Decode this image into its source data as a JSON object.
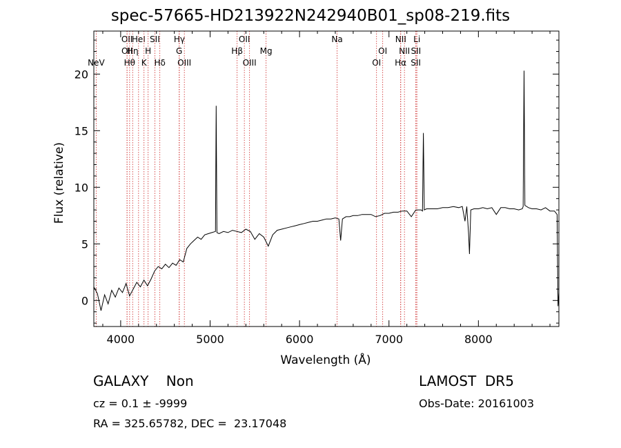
{
  "header": {
    "title": "spec-57665-HD213922N242940B01_sp08-219.fits"
  },
  "footer": {
    "object_class": "GALAXY    Non",
    "survey": "LAMOST  DR5",
    "cz_text": "cz = 0.1 ± -9999",
    "obs_date": "Obs-Date: 20161003",
    "radec": "RA = 325.65782, DEC =  23.17048"
  },
  "colors": {
    "spectrum": "#000000",
    "line_markers": "#cc2222",
    "axes": "#000000"
  },
  "chart_data": {
    "type": "line",
    "title": "spec-57665-HD213922N242940B01_sp08-219.fits",
    "xlabel": "Wavelength (Å)",
    "ylabel": "Flux (relative)",
    "xlim": [
      3700,
      8900
    ],
    "ylim": [
      -2.3,
      23.8
    ],
    "xticks": [
      4000,
      5000,
      6000,
      7000,
      8000
    ],
    "yticks": [
      0,
      5,
      10,
      15,
      20
    ],
    "grid": false,
    "series": [
      {
        "points": [
          [
            3700,
            1.2
          ],
          [
            3740,
            0.6
          ],
          [
            3780,
            -0.9
          ],
          [
            3820,
            0.5
          ],
          [
            3860,
            -0.3
          ],
          [
            3900,
            0.9
          ],
          [
            3940,
            0.3
          ],
          [
            3980,
            1.1
          ],
          [
            4020,
            0.7
          ],
          [
            4060,
            1.5
          ],
          [
            4100,
            0.4
          ],
          [
            4140,
            1.0
          ],
          [
            4180,
            1.6
          ],
          [
            4220,
            1.2
          ],
          [
            4260,
            1.8
          ],
          [
            4300,
            1.3
          ],
          [
            4340,
            1.9
          ],
          [
            4380,
            2.6
          ],
          [
            4420,
            3.0
          ],
          [
            4460,
            2.8
          ],
          [
            4500,
            3.2
          ],
          [
            4540,
            2.9
          ],
          [
            4580,
            3.3
          ],
          [
            4620,
            3.1
          ],
          [
            4660,
            3.6
          ],
          [
            4700,
            3.4
          ],
          [
            4740,
            4.6
          ],
          [
            4780,
            5.0
          ],
          [
            4820,
            5.3
          ],
          [
            4860,
            5.6
          ],
          [
            4900,
            5.4
          ],
          [
            4940,
            5.8
          ],
          [
            4980,
            5.9
          ],
          [
            5020,
            6.0
          ],
          [
            5060,
            6.1
          ],
          [
            5068,
            17.2
          ],
          [
            5076,
            6.0
          ],
          [
            5100,
            5.9
          ],
          [
            5150,
            6.1
          ],
          [
            5200,
            6.0
          ],
          [
            5250,
            6.2
          ],
          [
            5300,
            6.1
          ],
          [
            5350,
            6.0
          ],
          [
            5400,
            6.3
          ],
          [
            5450,
            6.1
          ],
          [
            5500,
            5.4
          ],
          [
            5550,
            5.9
          ],
          [
            5600,
            5.6
          ],
          [
            5650,
            4.8
          ],
          [
            5700,
            5.8
          ],
          [
            5750,
            6.2
          ],
          [
            5800,
            6.3
          ],
          [
            5850,
            6.4
          ],
          [
            5900,
            6.5
          ],
          [
            5950,
            6.6
          ],
          [
            6000,
            6.7
          ],
          [
            6050,
            6.8
          ],
          [
            6100,
            6.9
          ],
          [
            6150,
            7.0
          ],
          [
            6200,
            7.0
          ],
          [
            6250,
            7.1
          ],
          [
            6300,
            7.2
          ],
          [
            6350,
            7.2
          ],
          [
            6400,
            7.3
          ],
          [
            6440,
            7.2
          ],
          [
            6460,
            5.3
          ],
          [
            6480,
            7.2
          ],
          [
            6520,
            7.4
          ],
          [
            6560,
            7.4
          ],
          [
            6600,
            7.5
          ],
          [
            6650,
            7.5
          ],
          [
            6700,
            7.6
          ],
          [
            6750,
            7.6
          ],
          [
            6800,
            7.6
          ],
          [
            6850,
            7.4
          ],
          [
            6900,
            7.5
          ],
          [
            6950,
            7.7
          ],
          [
            7000,
            7.7
          ],
          [
            7050,
            7.8
          ],
          [
            7100,
            7.8
          ],
          [
            7150,
            7.9
          ],
          [
            7200,
            7.9
          ],
          [
            7250,
            7.4
          ],
          [
            7300,
            8.0
          ],
          [
            7340,
            8.0
          ],
          [
            7360,
            8.0
          ],
          [
            7375,
            7.9
          ],
          [
            7385,
            14.8
          ],
          [
            7395,
            8.0
          ],
          [
            7420,
            8.1
          ],
          [
            7480,
            8.1
          ],
          [
            7540,
            8.1
          ],
          [
            7600,
            8.2
          ],
          [
            7660,
            8.2
          ],
          [
            7720,
            8.3
          ],
          [
            7780,
            8.2
          ],
          [
            7820,
            8.3
          ],
          [
            7850,
            7.0
          ],
          [
            7870,
            8.3
          ],
          [
            7890,
            5.9
          ],
          [
            7900,
            4.1
          ],
          [
            7915,
            8.0
          ],
          [
            7950,
            8.1
          ],
          [
            8000,
            8.1
          ],
          [
            8050,
            8.2
          ],
          [
            8100,
            8.1
          ],
          [
            8150,
            8.2
          ],
          [
            8200,
            7.6
          ],
          [
            8250,
            8.2
          ],
          [
            8300,
            8.2
          ],
          [
            8350,
            8.1
          ],
          [
            8400,
            8.1
          ],
          [
            8450,
            8.0
          ],
          [
            8490,
            8.1
          ],
          [
            8500,
            8.3
          ],
          [
            8510,
            20.3
          ],
          [
            8520,
            8.4
          ],
          [
            8560,
            8.2
          ],
          [
            8600,
            8.1
          ],
          [
            8650,
            8.1
          ],
          [
            8700,
            8.0
          ],
          [
            8750,
            8.2
          ],
          [
            8800,
            7.9
          ],
          [
            8850,
            7.9
          ],
          [
            8880,
            7.6
          ],
          [
            8890,
            -0.5
          ],
          [
            8900,
            0.7
          ]
        ]
      }
    ],
    "line_markers": [
      {
        "label": "NeV",
        "wavelength": 3726,
        "row": 4
      },
      {
        "label": "OII",
        "wavelength": 4071,
        "row": 1
      },
      {
        "label": "OII",
        "wavelength": 4072,
        "row": 2
      },
      {
        "label": "Hθ",
        "wavelength": 4100,
        "row": 3
      },
      {
        "label": "Hη",
        "wavelength": 4134,
        "row": 2
      },
      {
        "label": "HeI",
        "wavelength": 4200,
        "row": 1
      },
      {
        "label": "K",
        "wavelength": 4261,
        "row": 3
      },
      {
        "label": "H",
        "wavelength": 4307,
        "row": 2
      },
      {
        "label": "SII",
        "wavelength": 4382,
        "row": 1
      },
      {
        "label": "Hδ",
        "wavelength": 4438,
        "row": 3
      },
      {
        "label": "Hγ",
        "wavelength": 4656,
        "row": 1
      },
      {
        "label": "G",
        "wavelength": 4654,
        "row": 2
      },
      {
        "label": "OIII",
        "wavelength": 4712,
        "row": 3
      },
      {
        "label": "Hβ",
        "wavelength": 5302,
        "row": 2
      },
      {
        "label": "OII",
        "wavelength": 5383,
        "row": 1
      },
      {
        "label": "OIII",
        "wavelength": 5441,
        "row": 3
      },
      {
        "label": "Mg",
        "wavelength": 5626,
        "row": 2
      },
      {
        "label": "Na",
        "wavelength": 6420,
        "row": 1
      },
      {
        "label": "OI",
        "wavelength": 6930,
        "row": 2
      },
      {
        "label": "OI",
        "wavelength": 6861,
        "row": 3
      },
      {
        "label": "NII",
        "wavelength": 7132,
        "row": 1
      },
      {
        "label": "NII",
        "wavelength": 7173,
        "row": 2
      },
      {
        "label": "Hα",
        "wavelength": 7130,
        "row": 3
      },
      {
        "label": "Li",
        "wavelength": 7312,
        "row": 1
      },
      {
        "label": "SII",
        "wavelength": 7302,
        "row": 2
      },
      {
        "label": "SII",
        "wavelength": 7300,
        "row": 3
      }
    ]
  }
}
